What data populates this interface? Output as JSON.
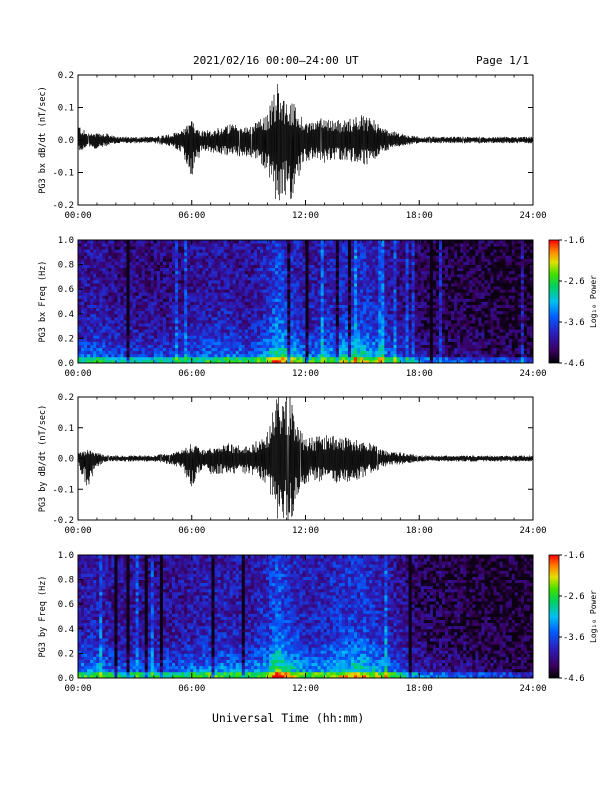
{
  "header": {
    "title": "2021/02/16  00:00–24:00 UT",
    "page": "Page 1/1"
  },
  "footer": {
    "xlabel": "Universal Time (hh:mm)"
  },
  "chart_data": [
    {
      "type": "line",
      "ylabel": "PG3 bx dB/dt (nT/sec)",
      "xlim": [
        0,
        24
      ],
      "ylim": [
        -0.2,
        0.2
      ],
      "xticks": [
        "00:00",
        "06:00",
        "12:00",
        "18:00",
        "24:00"
      ],
      "yticks": [
        "-0.2",
        "-0.1",
        "0.0",
        "0.1",
        "0.2"
      ],
      "envelope": {
        "x": [
          0,
          0.5,
          1,
          1.5,
          2,
          3,
          4,
          5,
          5.5,
          6,
          6.5,
          7,
          8,
          9,
          9.5,
          10,
          10.5,
          10.8,
          11,
          11.3,
          11.6,
          12,
          12.5,
          13,
          14,
          15,
          15.5,
          16,
          16.5,
          17,
          18,
          19,
          20,
          21,
          22,
          23,
          24
        ],
        "upper": [
          0.05,
          0.02,
          0.02,
          0.02,
          0.01,
          0.01,
          0.01,
          0.02,
          0.03,
          0.06,
          0.03,
          0.03,
          0.05,
          0.04,
          0.06,
          0.08,
          0.18,
          0.15,
          0.12,
          0.12,
          0.09,
          0.06,
          0.06,
          0.07,
          0.06,
          0.08,
          0.07,
          0.04,
          0.03,
          0.02,
          0.01,
          0.01,
          0.01,
          0.01,
          0.01,
          0.01,
          0.01
        ],
        "lower": [
          -0.04,
          -0.02,
          -0.03,
          -0.02,
          -0.01,
          -0.01,
          -0.01,
          -0.02,
          -0.04,
          -0.12,
          -0.04,
          -0.04,
          -0.05,
          -0.05,
          -0.06,
          -0.1,
          -0.2,
          -0.19,
          -0.17,
          -0.19,
          -0.12,
          -0.07,
          -0.06,
          -0.07,
          -0.06,
          -0.08,
          -0.07,
          -0.04,
          -0.03,
          -0.02,
          -0.01,
          -0.01,
          -0.01,
          -0.01,
          -0.01,
          -0.01,
          -0.01
        ]
      }
    },
    {
      "type": "heatmap",
      "ylabel": "PG3 bx Freq (Hz)",
      "xlim": [
        0,
        24
      ],
      "ylim": [
        0,
        1.0
      ],
      "xticks": [
        "00:00",
        "06:00",
        "12:00",
        "18:00",
        "24:00"
      ],
      "yticks": [
        "0.0",
        "0.2",
        "0.4",
        "0.6",
        "0.8",
        "1.0"
      ],
      "colorbar": {
        "label": "Log₁₀ Power",
        "range": [
          -4.6,
          -1.6
        ],
        "ticks": [
          "-1.6",
          "-2.6",
          "-3.6",
          "-4.6"
        ]
      },
      "activity_profile": {
        "x": [
          0,
          1,
          2,
          3,
          4,
          5,
          6,
          7,
          8,
          9,
          10,
          10.5,
          11,
          12,
          13,
          14,
          15,
          16,
          17,
          18,
          19,
          20,
          21,
          22,
          23,
          24
        ],
        "level": [
          0.45,
          0.5,
          0.4,
          0.4,
          0.4,
          0.4,
          0.45,
          0.5,
          0.5,
          0.45,
          0.6,
          0.85,
          0.7,
          0.5,
          0.55,
          0.65,
          0.7,
          0.55,
          0.4,
          0.25,
          0.2,
          0.18,
          0.18,
          0.15,
          0.12,
          0.1
        ]
      }
    },
    {
      "type": "line",
      "ylabel": "PG3 by dB/dt (nT/sec)",
      "xlim": [
        0,
        24
      ],
      "ylim": [
        -0.2,
        0.2
      ],
      "xticks": [
        "00:00",
        "06:00",
        "12:00",
        "18:00",
        "24:00"
      ],
      "yticks": [
        "-0.2",
        "-0.1",
        "0.0",
        "0.1",
        "0.2"
      ],
      "envelope": {
        "x": [
          0,
          0.5,
          1,
          1.5,
          2,
          3,
          4,
          5,
          5.5,
          6,
          6.5,
          7,
          8,
          9,
          9.5,
          10,
          10.5,
          10.8,
          11,
          11.3,
          11.6,
          12,
          12.5,
          13,
          14,
          15,
          15.5,
          16,
          16.5,
          17,
          18,
          19,
          20,
          21,
          22,
          23,
          24
        ],
        "upper": [
          0.02,
          0.03,
          0.02,
          0.01,
          0.01,
          0.01,
          0.01,
          0.02,
          0.03,
          0.05,
          0.03,
          0.04,
          0.05,
          0.04,
          0.06,
          0.1,
          0.2,
          0.2,
          0.2,
          0.2,
          0.1,
          0.07,
          0.07,
          0.08,
          0.07,
          0.06,
          0.05,
          0.03,
          0.02,
          0.02,
          0.01,
          0.01,
          0.01,
          0.01,
          0.01,
          0.01,
          0.01
        ],
        "lower": [
          -0.02,
          -0.1,
          -0.03,
          -0.01,
          -0.01,
          -0.01,
          -0.01,
          -0.02,
          -0.04,
          -0.1,
          -0.04,
          -0.05,
          -0.05,
          -0.05,
          -0.06,
          -0.1,
          -0.2,
          -0.2,
          -0.2,
          -0.2,
          -0.12,
          -0.08,
          -0.07,
          -0.08,
          -0.08,
          -0.07,
          -0.05,
          -0.03,
          -0.02,
          -0.02,
          -0.01,
          -0.01,
          -0.01,
          -0.01,
          -0.01,
          -0.01,
          -0.01
        ]
      }
    },
    {
      "type": "heatmap",
      "ylabel": "PG3 by Freq (Hz)",
      "xlim": [
        0,
        24
      ],
      "ylim": [
        0,
        1.0
      ],
      "xticks": [
        "00:00",
        "06:00",
        "12:00",
        "18:00",
        "24:00"
      ],
      "yticks": [
        "0.0",
        "0.2",
        "0.4",
        "0.6",
        "0.8",
        "1.0"
      ],
      "colorbar": {
        "label": "Log₁₀ Power",
        "range": [
          -4.6,
          -1.6
        ],
        "ticks": [
          "-1.6",
          "-2.6",
          "-3.6",
          "-4.6"
        ]
      },
      "activity_profile": {
        "x": [
          0,
          1,
          2,
          3,
          4,
          5,
          6,
          7,
          8,
          9,
          10,
          10.5,
          11,
          12,
          13,
          14,
          15,
          16,
          17,
          18,
          19,
          20,
          21,
          22,
          23,
          24
        ],
        "level": [
          0.5,
          0.55,
          0.45,
          0.45,
          0.45,
          0.45,
          0.5,
          0.55,
          0.55,
          0.5,
          0.65,
          0.9,
          0.75,
          0.55,
          0.6,
          0.7,
          0.72,
          0.6,
          0.45,
          0.28,
          0.22,
          0.2,
          0.18,
          0.16,
          0.13,
          0.1
        ]
      }
    }
  ]
}
